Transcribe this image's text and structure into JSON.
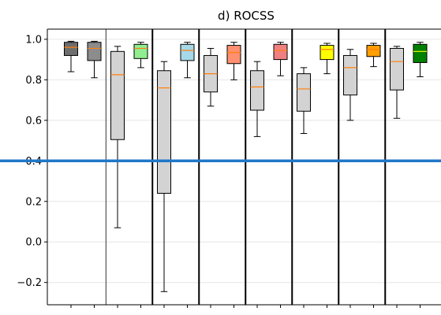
{
  "chart_data": {
    "type": "box",
    "title": "d) ROCSS",
    "xlabel": "",
    "ylabel": "",
    "ylim": [
      -0.31,
      1.05
    ],
    "yticks": [
      -0.2,
      0.0,
      0.2,
      0.4,
      0.6,
      0.8,
      1.0
    ],
    "ytick_labels": [
      "−0.2",
      "0.0",
      "0.2",
      "0.4",
      "0.6",
      "0.8",
      "1.0"
    ],
    "grid": true,
    "x_tick_count": 16,
    "reference_line": {
      "y": 0.4,
      "color": "#1f78c8"
    },
    "boxes": [
      {
        "id": "box-1",
        "slot": 1,
        "whisker_low": 0.84,
        "q1": 0.92,
        "median": 0.96,
        "q3": 0.985,
        "whisker_high": 0.99,
        "fill": "#6e6e6e",
        "median_color": "#ff7f0e"
      },
      {
        "id": "box-2",
        "slot": 2,
        "whisker_low": 0.81,
        "q1": 0.895,
        "median": 0.955,
        "q3": 0.985,
        "whisker_high": 0.99,
        "fill": "#8c8c8c",
        "median_color": "#ff7f0e"
      },
      {
        "id": "box-3",
        "slot": 3,
        "whisker_low": 0.07,
        "q1": 0.505,
        "median": 0.825,
        "q3": 0.94,
        "whisker_high": 0.965,
        "fill": "#d3d3d3",
        "median_color": "#ff7f0e"
      },
      {
        "id": "box-4",
        "slot": 4,
        "whisker_low": 0.86,
        "q1": 0.905,
        "median": 0.955,
        "q3": 0.975,
        "whisker_high": 0.985,
        "fill": "#90ee90",
        "median_color": "#ff7f0e"
      },
      {
        "id": "box-5",
        "slot": 5,
        "whisker_low": -0.245,
        "q1": 0.24,
        "median": 0.76,
        "q3": 0.845,
        "whisker_high": 0.89,
        "fill": "#d3d3d3",
        "median_color": "#ff7f0e"
      },
      {
        "id": "box-6",
        "slot": 6,
        "whisker_low": 0.81,
        "q1": 0.895,
        "median": 0.945,
        "q3": 0.975,
        "whisker_high": 0.985,
        "fill": "#a6d8e8",
        "median_color": "#ff7f0e"
      },
      {
        "id": "box-7",
        "slot": 7,
        "whisker_low": 0.67,
        "q1": 0.74,
        "median": 0.83,
        "q3": 0.92,
        "whisker_high": 0.955,
        "fill": "#d3d3d3",
        "median_color": "#ff7f0e"
      },
      {
        "id": "box-8",
        "slot": 8,
        "whisker_low": 0.8,
        "q1": 0.88,
        "median": 0.935,
        "q3": 0.97,
        "whisker_high": 0.985,
        "fill": "#ff9070",
        "median_color": "#ff7f0e"
      },
      {
        "id": "box-9",
        "slot": 9,
        "whisker_low": 0.52,
        "q1": 0.65,
        "median": 0.765,
        "q3": 0.845,
        "whisker_high": 0.89,
        "fill": "#d3d3d3",
        "median_color": "#ff7f0e"
      },
      {
        "id": "box-10",
        "slot": 10,
        "whisker_low": 0.82,
        "q1": 0.9,
        "median": 0.945,
        "q3": 0.975,
        "whisker_high": 0.985,
        "fill": "#f08080",
        "median_color": "#ff7f0e"
      },
      {
        "id": "box-11",
        "slot": 11,
        "whisker_low": 0.535,
        "q1": 0.645,
        "median": 0.755,
        "q3": 0.83,
        "whisker_high": 0.86,
        "fill": "#d3d3d3",
        "median_color": "#ff7f0e"
      },
      {
        "id": "box-12",
        "slot": 12,
        "whisker_low": 0.83,
        "q1": 0.9,
        "median": 0.95,
        "q3": 0.97,
        "whisker_high": 0.98,
        "fill": "#ffff00",
        "median_color": "#ff7f0e"
      },
      {
        "id": "box-13",
        "slot": 13,
        "whisker_low": 0.6,
        "q1": 0.725,
        "median": 0.86,
        "q3": 0.92,
        "whisker_high": 0.95,
        "fill": "#d3d3d3",
        "median_color": "#ff7f0e"
      },
      {
        "id": "box-14",
        "slot": 14,
        "whisker_low": 0.865,
        "q1": 0.915,
        "median": 0.95,
        "q3": 0.97,
        "whisker_high": 0.98,
        "fill": "#ff9f00",
        "median_color": "#ff7f0e"
      },
      {
        "id": "box-15",
        "slot": 15,
        "whisker_low": 0.61,
        "q1": 0.75,
        "median": 0.89,
        "q3": 0.955,
        "whisker_high": 0.965,
        "fill": "#d3d3d3",
        "median_color": "#ff7f0e"
      },
      {
        "id": "box-16",
        "slot": 16,
        "whisker_low": 0.815,
        "q1": 0.885,
        "median": 0.94,
        "q3": 0.975,
        "whisker_high": 0.985,
        "fill": "#008000",
        "median_color": "#ffff00"
      }
    ],
    "separators": [
      {
        "after_slot": 2,
        "style": "thin"
      },
      {
        "after_slot": 4,
        "style": "thick"
      },
      {
        "after_slot": 6,
        "style": "thick"
      },
      {
        "after_slot": 8,
        "style": "thick"
      },
      {
        "after_slot": 10,
        "style": "thick"
      },
      {
        "after_slot": 12,
        "style": "thick"
      },
      {
        "after_slot": 14,
        "style": "thick"
      }
    ]
  }
}
